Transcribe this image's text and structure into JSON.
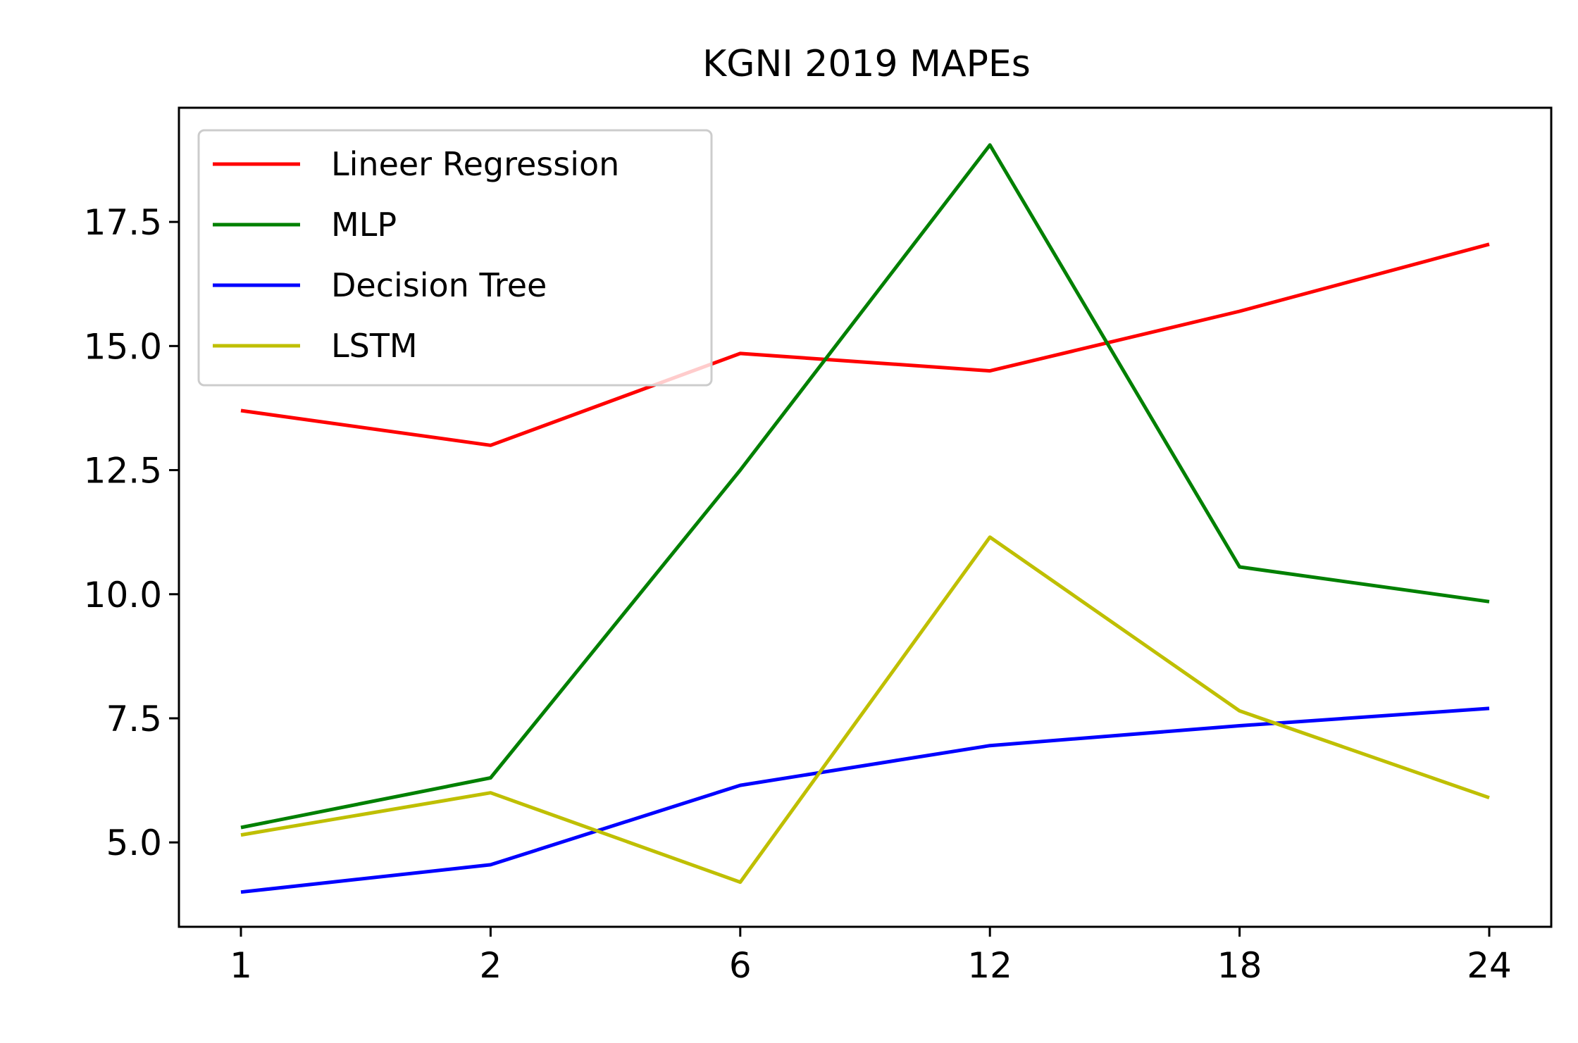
{
  "chart_data": {
    "type": "line",
    "title": "KGNI  2019 MAPEs",
    "xlabel": "",
    "ylabel": "",
    "categories": [
      "1",
      "2",
      "6",
      "12",
      "18",
      "24"
    ],
    "ylim": [
      3.3,
      19.8
    ],
    "yticks": [
      "5.0",
      "7.5",
      "10.0",
      "12.5",
      "15.0",
      "17.5"
    ],
    "grid": false,
    "legend_position": "top-left",
    "series": [
      {
        "name": "Lineer Regression",
        "color": "#ff0000",
        "values": [
          13.7,
          13.0,
          14.85,
          14.5,
          15.7,
          17.05
        ]
      },
      {
        "name": "MLP",
        "color": "#008000",
        "values": [
          5.3,
          6.3,
          12.5,
          19.05,
          10.55,
          9.85
        ]
      },
      {
        "name": "Decision Tree",
        "color": "#0000ff",
        "values": [
          4.0,
          4.55,
          6.15,
          6.95,
          7.35,
          7.7
        ]
      },
      {
        "name": "LSTM",
        "color": "#bfbf00",
        "values": [
          5.15,
          6.0,
          4.2,
          11.15,
          7.65,
          5.9
        ]
      }
    ]
  }
}
